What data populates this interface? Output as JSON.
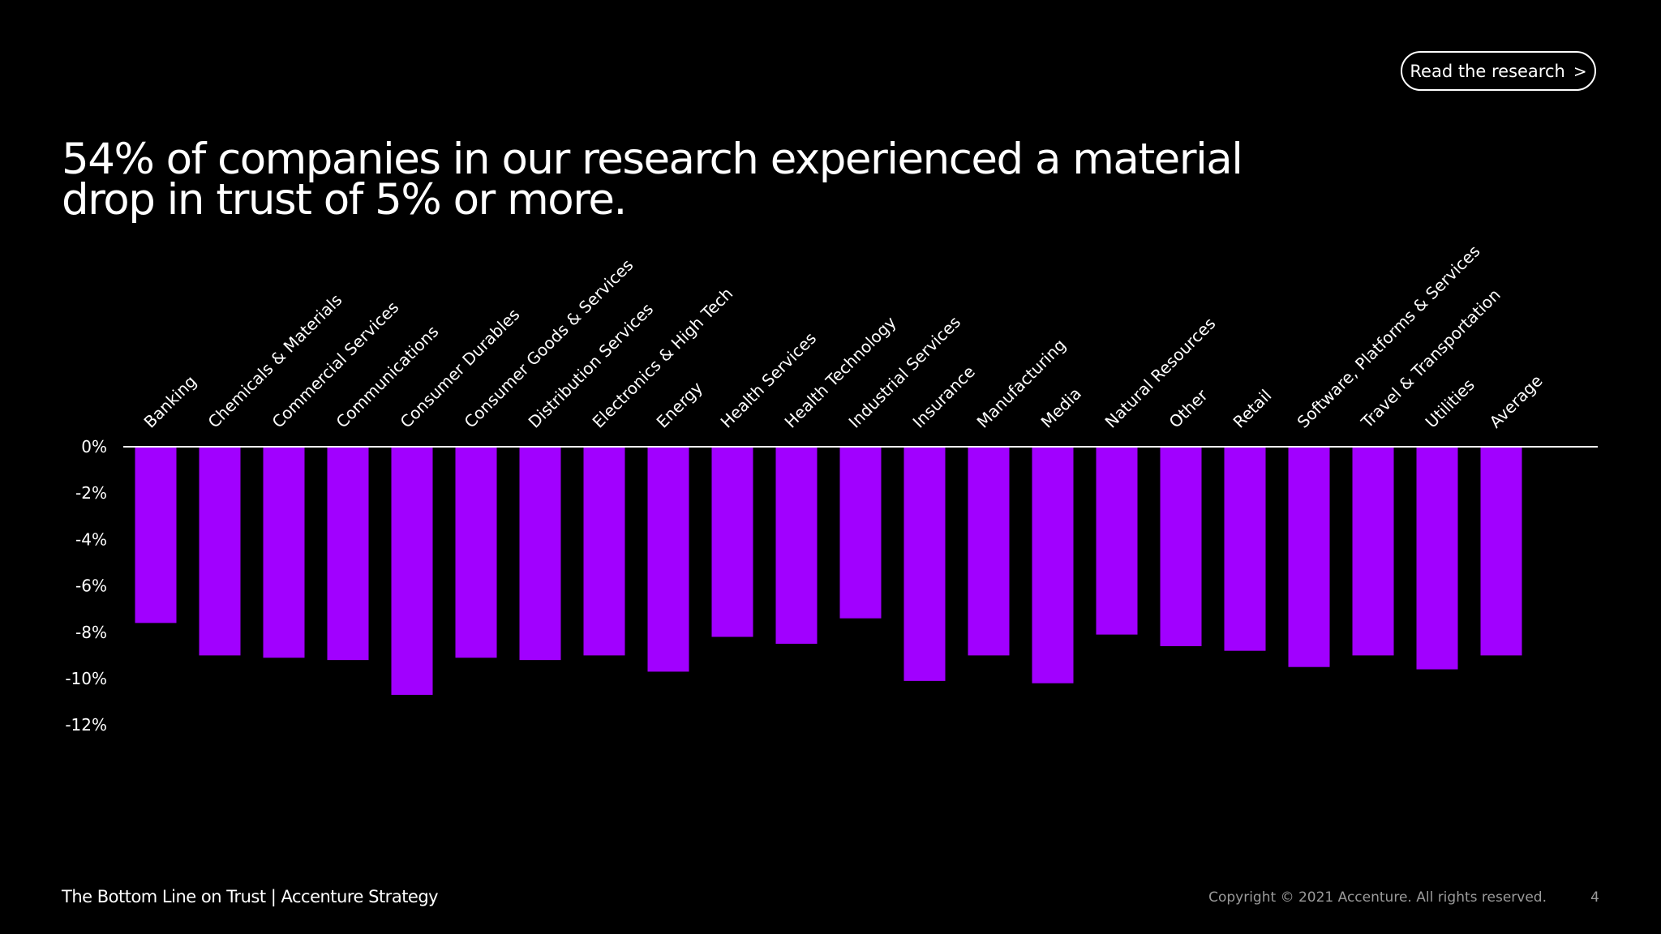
{
  "header": {
    "read_button_label": "Read the research",
    "read_button_chevron": ">",
    "headline_line1": "54% of companies in our research experienced a material",
    "headline_line2": "drop in trust of 5% or more."
  },
  "footer": {
    "left_text": "The Bottom Line on Trust | Accenture Strategy",
    "copyright": "Copyright © 2021 Accenture. All rights reserved.",
    "page_number": "4"
  },
  "colors": {
    "background": "#000000",
    "bar": "#A100FF",
    "text": "#FFFFFF",
    "muted_text": "#9A9A9A"
  },
  "chart_data": {
    "type": "bar",
    "title": "",
    "xlabel": "",
    "ylabel": "",
    "ylim": [
      -12,
      0
    ],
    "yticks": [
      0,
      -2,
      -4,
      -6,
      -8,
      -10,
      -12
    ],
    "ytick_labels": [
      "0%",
      "-2%",
      "-4%",
      "-6%",
      "-8%",
      "-10%",
      "-12%"
    ],
    "grid": false,
    "categories": [
      "Banking",
      "Chemicals & Materials",
      "Commercial Services",
      "Communications",
      "Consumer Durables",
      "Consumer Goods & Services",
      "Distribution Services",
      "Electronics & High Tech",
      "Energy",
      "Health Services",
      "Health Technology",
      "Industrial Services",
      "Insurance",
      "Manufacturing",
      "Media",
      "Natural Resources",
      "Other",
      "Retail",
      "Software, Platforms & Services",
      "Travel & Transportation",
      "Utilities",
      "Average"
    ],
    "values": [
      -7.6,
      -9.0,
      -9.1,
      -9.2,
      -10.7,
      -9.1,
      -9.2,
      -9.0,
      -9.7,
      -8.2,
      -8.5,
      -7.4,
      -10.1,
      -9.0,
      -10.2,
      -8.1,
      -8.6,
      -8.8,
      -9.5,
      -9.0,
      -9.6,
      -9.0
    ]
  }
}
